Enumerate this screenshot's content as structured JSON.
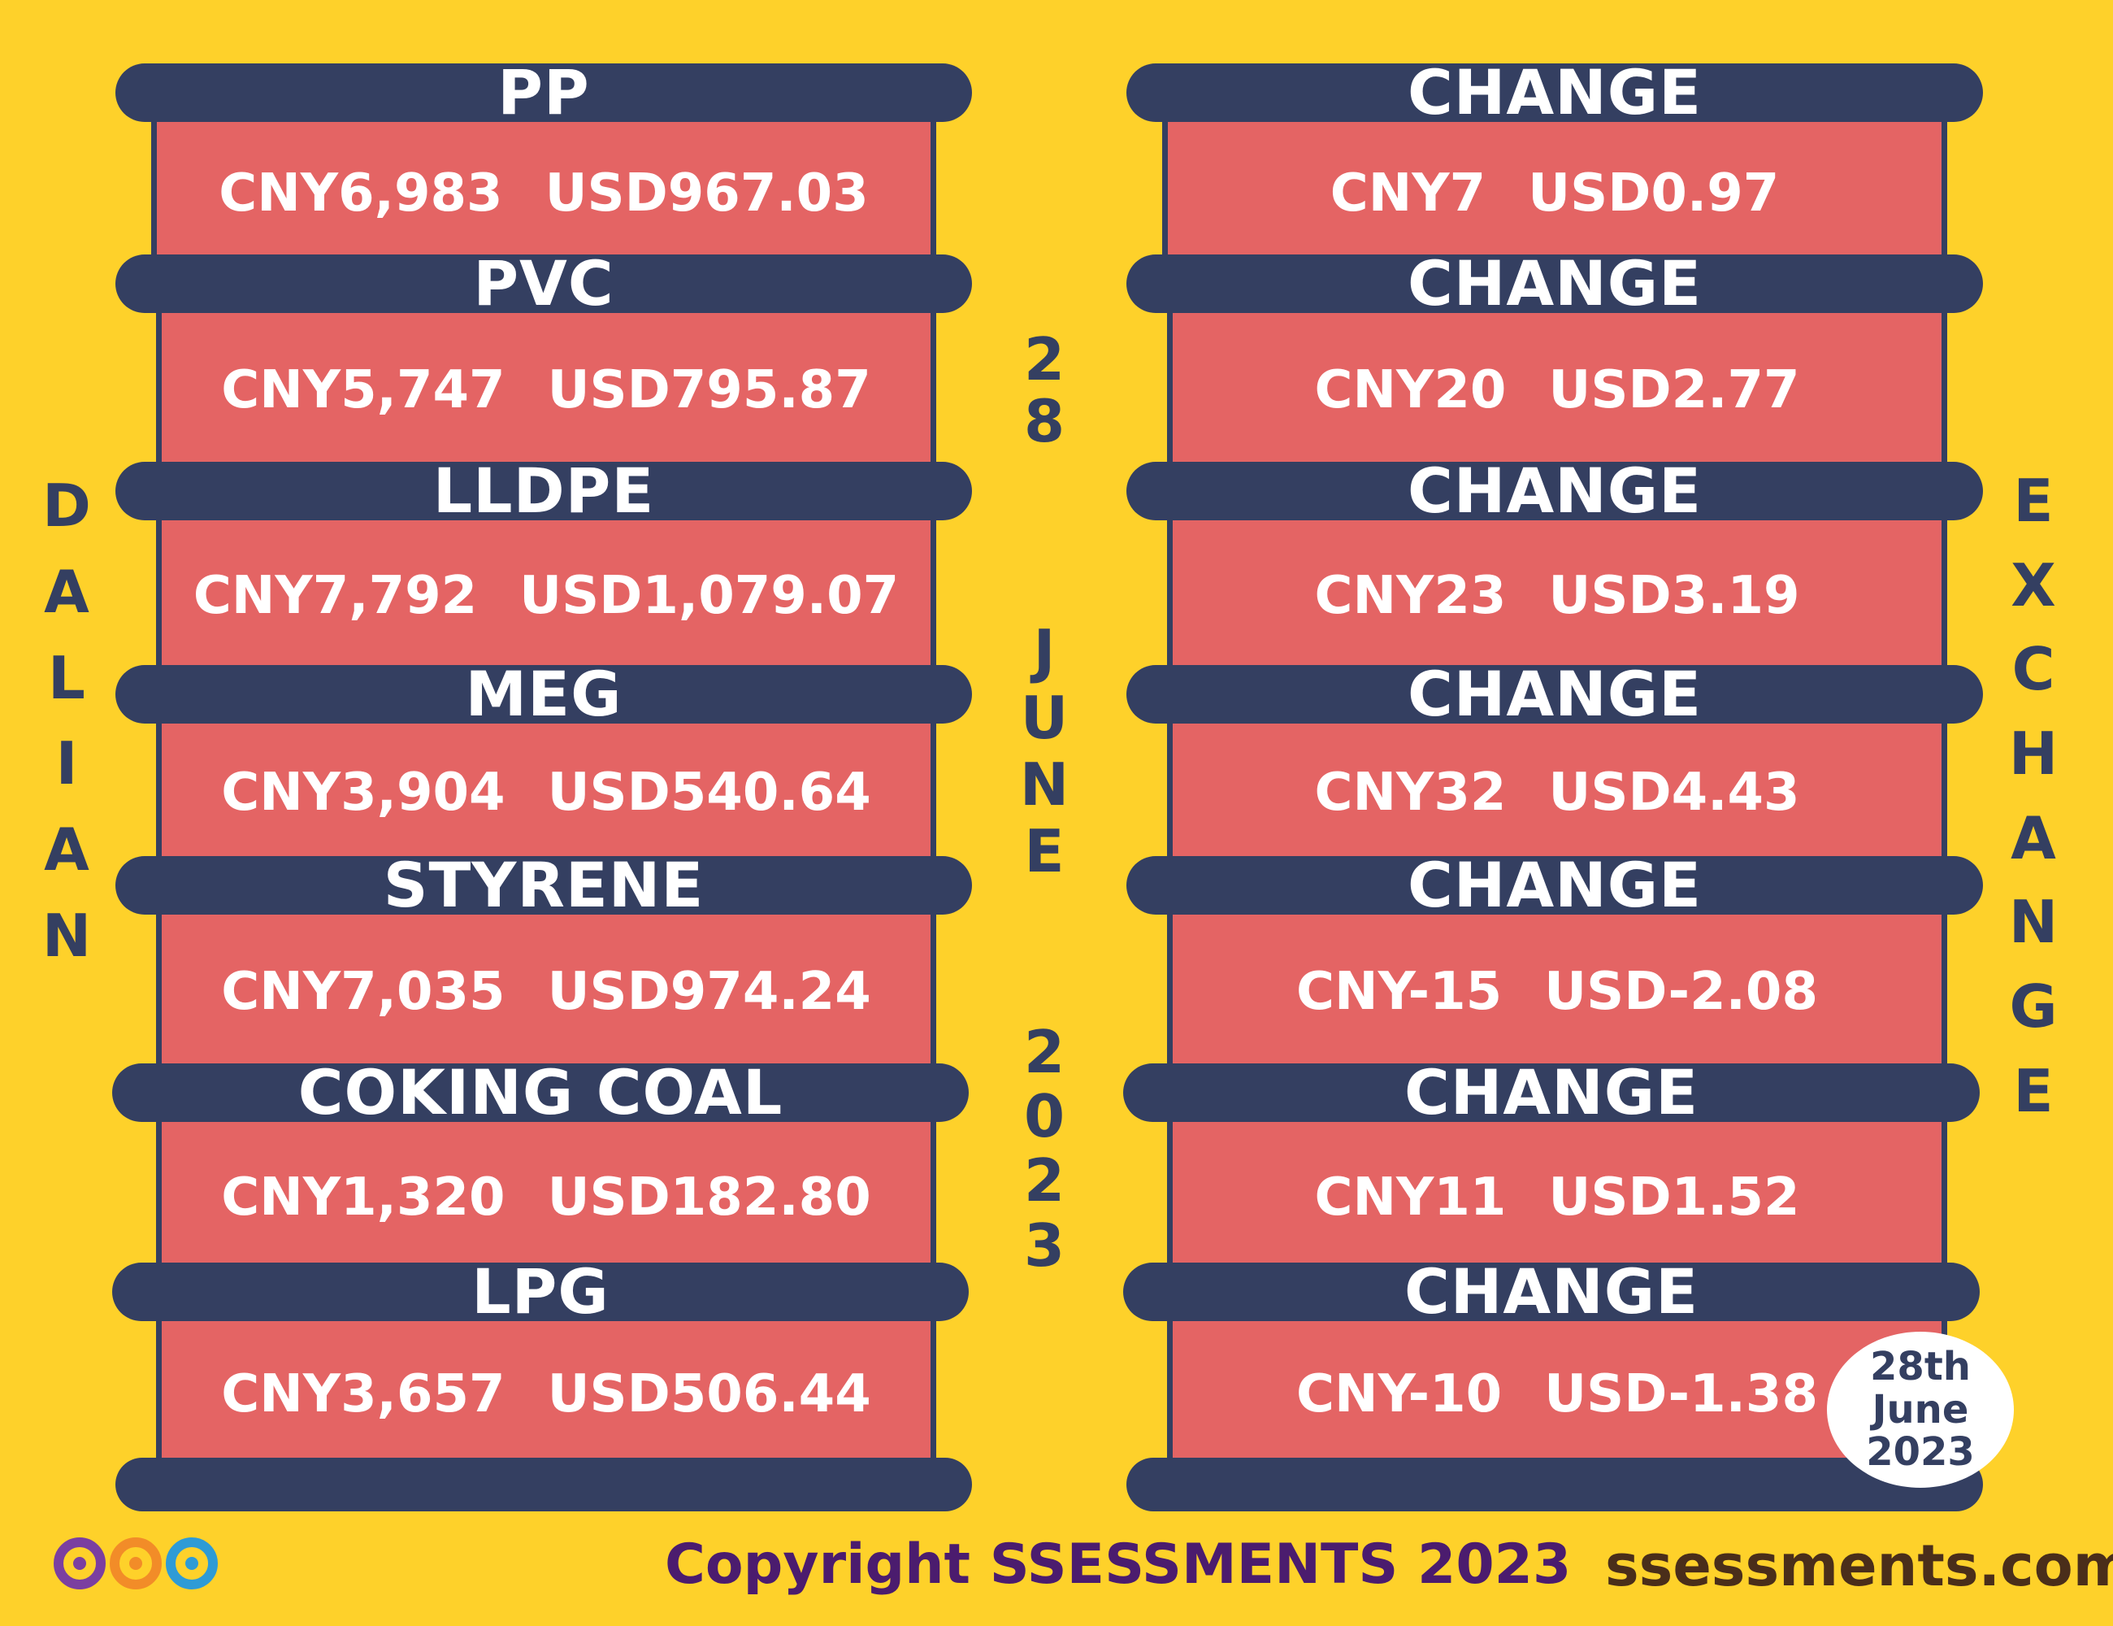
{
  "left_side_label": [
    "D",
    "A",
    "L",
    "I",
    "A",
    "N"
  ],
  "right_side_label": [
    "E",
    "X",
    "C",
    "H",
    "A",
    "N",
    "G",
    "E"
  ],
  "center_date": {
    "day": [
      "2",
      "8"
    ],
    "month": [
      "J",
      "U",
      "N",
      "E"
    ],
    "year": [
      "2",
      "0",
      "2",
      "3"
    ]
  },
  "products": [
    {
      "name": "PP",
      "cny": "CNY6,983",
      "usd": "USD967.03"
    },
    {
      "name": "PVC",
      "cny": "CNY5,747",
      "usd": "USD795.87"
    },
    {
      "name": "LLDPE",
      "cny": "CNY7,792",
      "usd": "USD1,079.07"
    },
    {
      "name": "MEG",
      "cny": "CNY3,904",
      "usd": "USD540.64"
    },
    {
      "name": "STYRENE",
      "cny": "CNY7,035",
      "usd": "USD974.24"
    },
    {
      "name": "COKING COAL",
      "cny": "CNY1,320",
      "usd": "USD182.80"
    },
    {
      "name": "LPG",
      "cny": "CNY3,657",
      "usd": "USD506.44"
    }
  ],
  "changes": [
    {
      "name": "CHANGE",
      "cny": "CNY7",
      "usd": "USD0.97"
    },
    {
      "name": "CHANGE",
      "cny": "CNY20",
      "usd": "USD2.77"
    },
    {
      "name": "CHANGE",
      "cny": "CNY23",
      "usd": "USD3.19"
    },
    {
      "name": "CHANGE",
      "cny": "CNY32",
      "usd": "USD4.43"
    },
    {
      "name": "CHANGE",
      "cny": "CNY-15",
      "usd": "USD-2.08"
    },
    {
      "name": "CHANGE",
      "cny": "CNY11",
      "usd": "USD1.52"
    },
    {
      "name": "CHANGE",
      "cny": "CNY-10",
      "usd": "USD-1.38"
    }
  ],
  "date_badge": [
    "28th",
    "June",
    "2023"
  ],
  "footer": {
    "copyright": "Copyright SSESSMENTS 2023",
    "website": "ssessments.com"
  },
  "colors": {
    "background": "#FED12A",
    "bar": "#343F61",
    "panel": "#E46464",
    "copyright_text": "#4B1C6E",
    "website_text": "#4A2E1A",
    "logo_purple": "#7B3FA0",
    "logo_orange": "#F28C28",
    "logo_blue": "#2E9BD6"
  }
}
